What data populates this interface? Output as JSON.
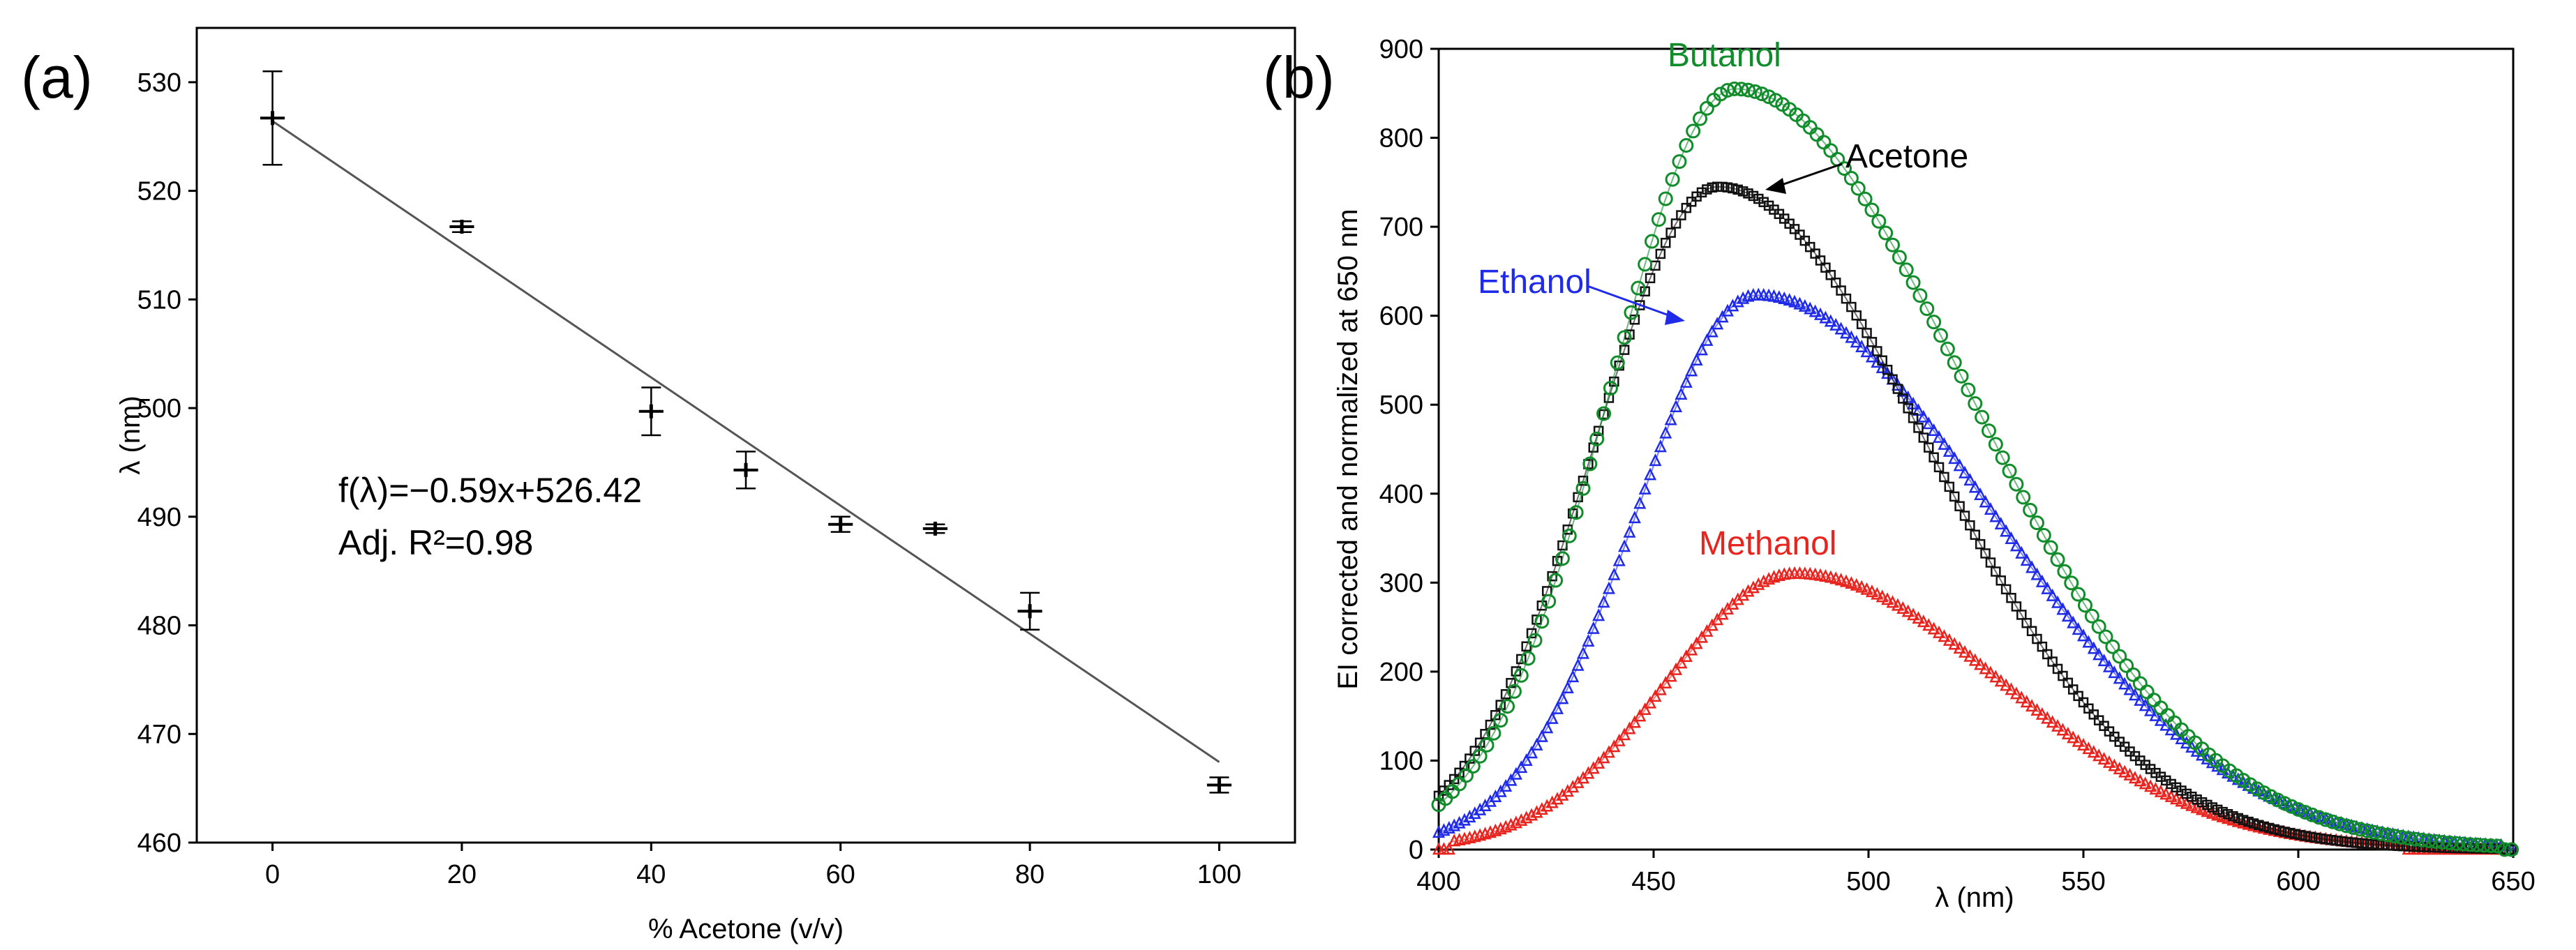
{
  "chart_data": [
    {
      "type": "scatter",
      "panel_label": "(a)",
      "xlabel": "% Acetone (v/v)",
      "ylabel": "λ (nm)",
      "xlim": [
        -8,
        108
      ],
      "ylim": [
        460,
        535
      ],
      "xticks": [
        0,
        20,
        40,
        60,
        80,
        100
      ],
      "yticks": [
        460,
        470,
        480,
        490,
        500,
        510,
        520,
        530
      ],
      "points": [
        {
          "x": 0,
          "y": 526.7,
          "yerr": 4.3,
          "xerr": 1.0
        },
        {
          "x": 20,
          "y": 516.7,
          "yerr": 0.5,
          "xerr": 1.0
        },
        {
          "x": 40,
          "y": 499.7,
          "yerr": 2.2,
          "xerr": 1.0
        },
        {
          "x": 50,
          "y": 494.3,
          "yerr": 1.7,
          "xerr": 1.0
        },
        {
          "x": 60,
          "y": 489.3,
          "yerr": 0.7,
          "xerr": 1.0
        },
        {
          "x": 70,
          "y": 488.9,
          "yerr": 0.4,
          "xerr": 1.0
        },
        {
          "x": 80,
          "y": 481.3,
          "yerr": 1.7,
          "xerr": 1.0
        },
        {
          "x": 100,
          "y": 465.3,
          "yerr": 0.7,
          "xerr": 1.0
        }
      ],
      "fit": {
        "slope": -0.59,
        "intercept": 526.42,
        "x_range": [
          0,
          100
        ]
      },
      "annotation_lines": [
        "f(λ)=−0.59x+526.42",
        "Adj. R²=0.98"
      ]
    },
    {
      "type": "scatter",
      "panel_label": "(b)",
      "xlabel": "λ (nm)",
      "ylabel": "EI corrected and normalized at 650 nm",
      "xlim": [
        400,
        650
      ],
      "ylim": [
        0,
        900
      ],
      "xticks": [
        400,
        450,
        500,
        550,
        600,
        650
      ],
      "yticks": [
        0,
        100,
        200,
        300,
        400,
        500,
        600,
        700,
        800,
        900
      ],
      "series": [
        {
          "name": "Methanol",
          "color": "#e8241f",
          "marker": "triangle",
          "peak_x": 483,
          "peak_y": 310,
          "sigma_left": 30,
          "sigma_right": 48,
          "onset": 403,
          "end": 625
        },
        {
          "name": "Ethanol",
          "color": "#1f2be8",
          "marker": "triangle",
          "peak_x": 474,
          "peak_y": 623,
          "sigma_left": 28,
          "sigma_right": 55,
          "onset": 400,
          "end": 648
        },
        {
          "name": "Acetone",
          "color": "#111111",
          "marker": "square",
          "peak_x": 465,
          "peak_y": 745,
          "sigma_left": 29,
          "sigma_right": 49,
          "onset": 400,
          "end": 648
        },
        {
          "name": "Butanol",
          "color": "#118c2b",
          "marker": "circle",
          "peak_x": 469,
          "peak_y": 855,
          "sigma_left": 29,
          "sigma_right": 54,
          "onset": 400,
          "end": 648
        }
      ]
    }
  ]
}
